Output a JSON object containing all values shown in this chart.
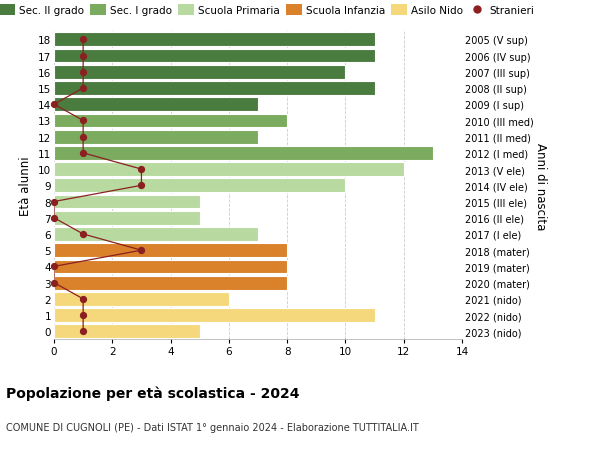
{
  "ages": [
    18,
    17,
    16,
    15,
    14,
    13,
    12,
    11,
    10,
    9,
    8,
    7,
    6,
    5,
    4,
    3,
    2,
    1,
    0
  ],
  "years": [
    "2005 (V sup)",
    "2006 (IV sup)",
    "2007 (III sup)",
    "2008 (II sup)",
    "2009 (I sup)",
    "2010 (III med)",
    "2011 (II med)",
    "2012 (I med)",
    "2013 (V ele)",
    "2014 (IV ele)",
    "2015 (III ele)",
    "2016 (II ele)",
    "2017 (I ele)",
    "2018 (mater)",
    "2019 (mater)",
    "2020 (mater)",
    "2021 (nido)",
    "2022 (nido)",
    "2023 (nido)"
  ],
  "values": [
    11,
    11,
    10,
    11,
    7,
    8,
    7,
    13,
    12,
    10,
    5,
    5,
    7,
    8,
    8,
    8,
    6,
    11,
    5
  ],
  "stranieri": [
    1,
    1,
    1,
    1,
    0,
    1,
    1,
    1,
    3,
    3,
    0,
    0,
    1,
    3,
    0,
    0,
    1,
    1,
    1
  ],
  "bar_colors": [
    "#4a7c3f",
    "#4a7c3f",
    "#4a7c3f",
    "#4a7c3f",
    "#4a7c3f",
    "#7aab5e",
    "#7aab5e",
    "#7aab5e",
    "#b8d9a0",
    "#b8d9a0",
    "#b8d9a0",
    "#b8d9a0",
    "#b8d9a0",
    "#d9822b",
    "#d9822b",
    "#d9822b",
    "#f5d87c",
    "#f5d87c",
    "#f5d87c"
  ],
  "title": "Popolazione per età scolastica - 2024",
  "subtitle": "COMUNE DI CUGNOLI (PE) - Dati ISTAT 1° gennaio 2024 - Elaborazione TUTTITALIA.IT",
  "ylabel_left": "Età alunni",
  "ylabel_right": "Anni di nascita",
  "legend_labels": [
    "Sec. II grado",
    "Sec. I grado",
    "Scuola Primaria",
    "Scuola Infanzia",
    "Asilo Nido",
    "Stranieri"
  ],
  "legend_colors": [
    "#4a7c3f",
    "#7aab5e",
    "#b8d9a0",
    "#d9822b",
    "#f5d87c",
    "#a02020"
  ],
  "stranieri_color": "#8b2020",
  "bg_color": "#ffffff",
  "grid_color": "#cccccc"
}
